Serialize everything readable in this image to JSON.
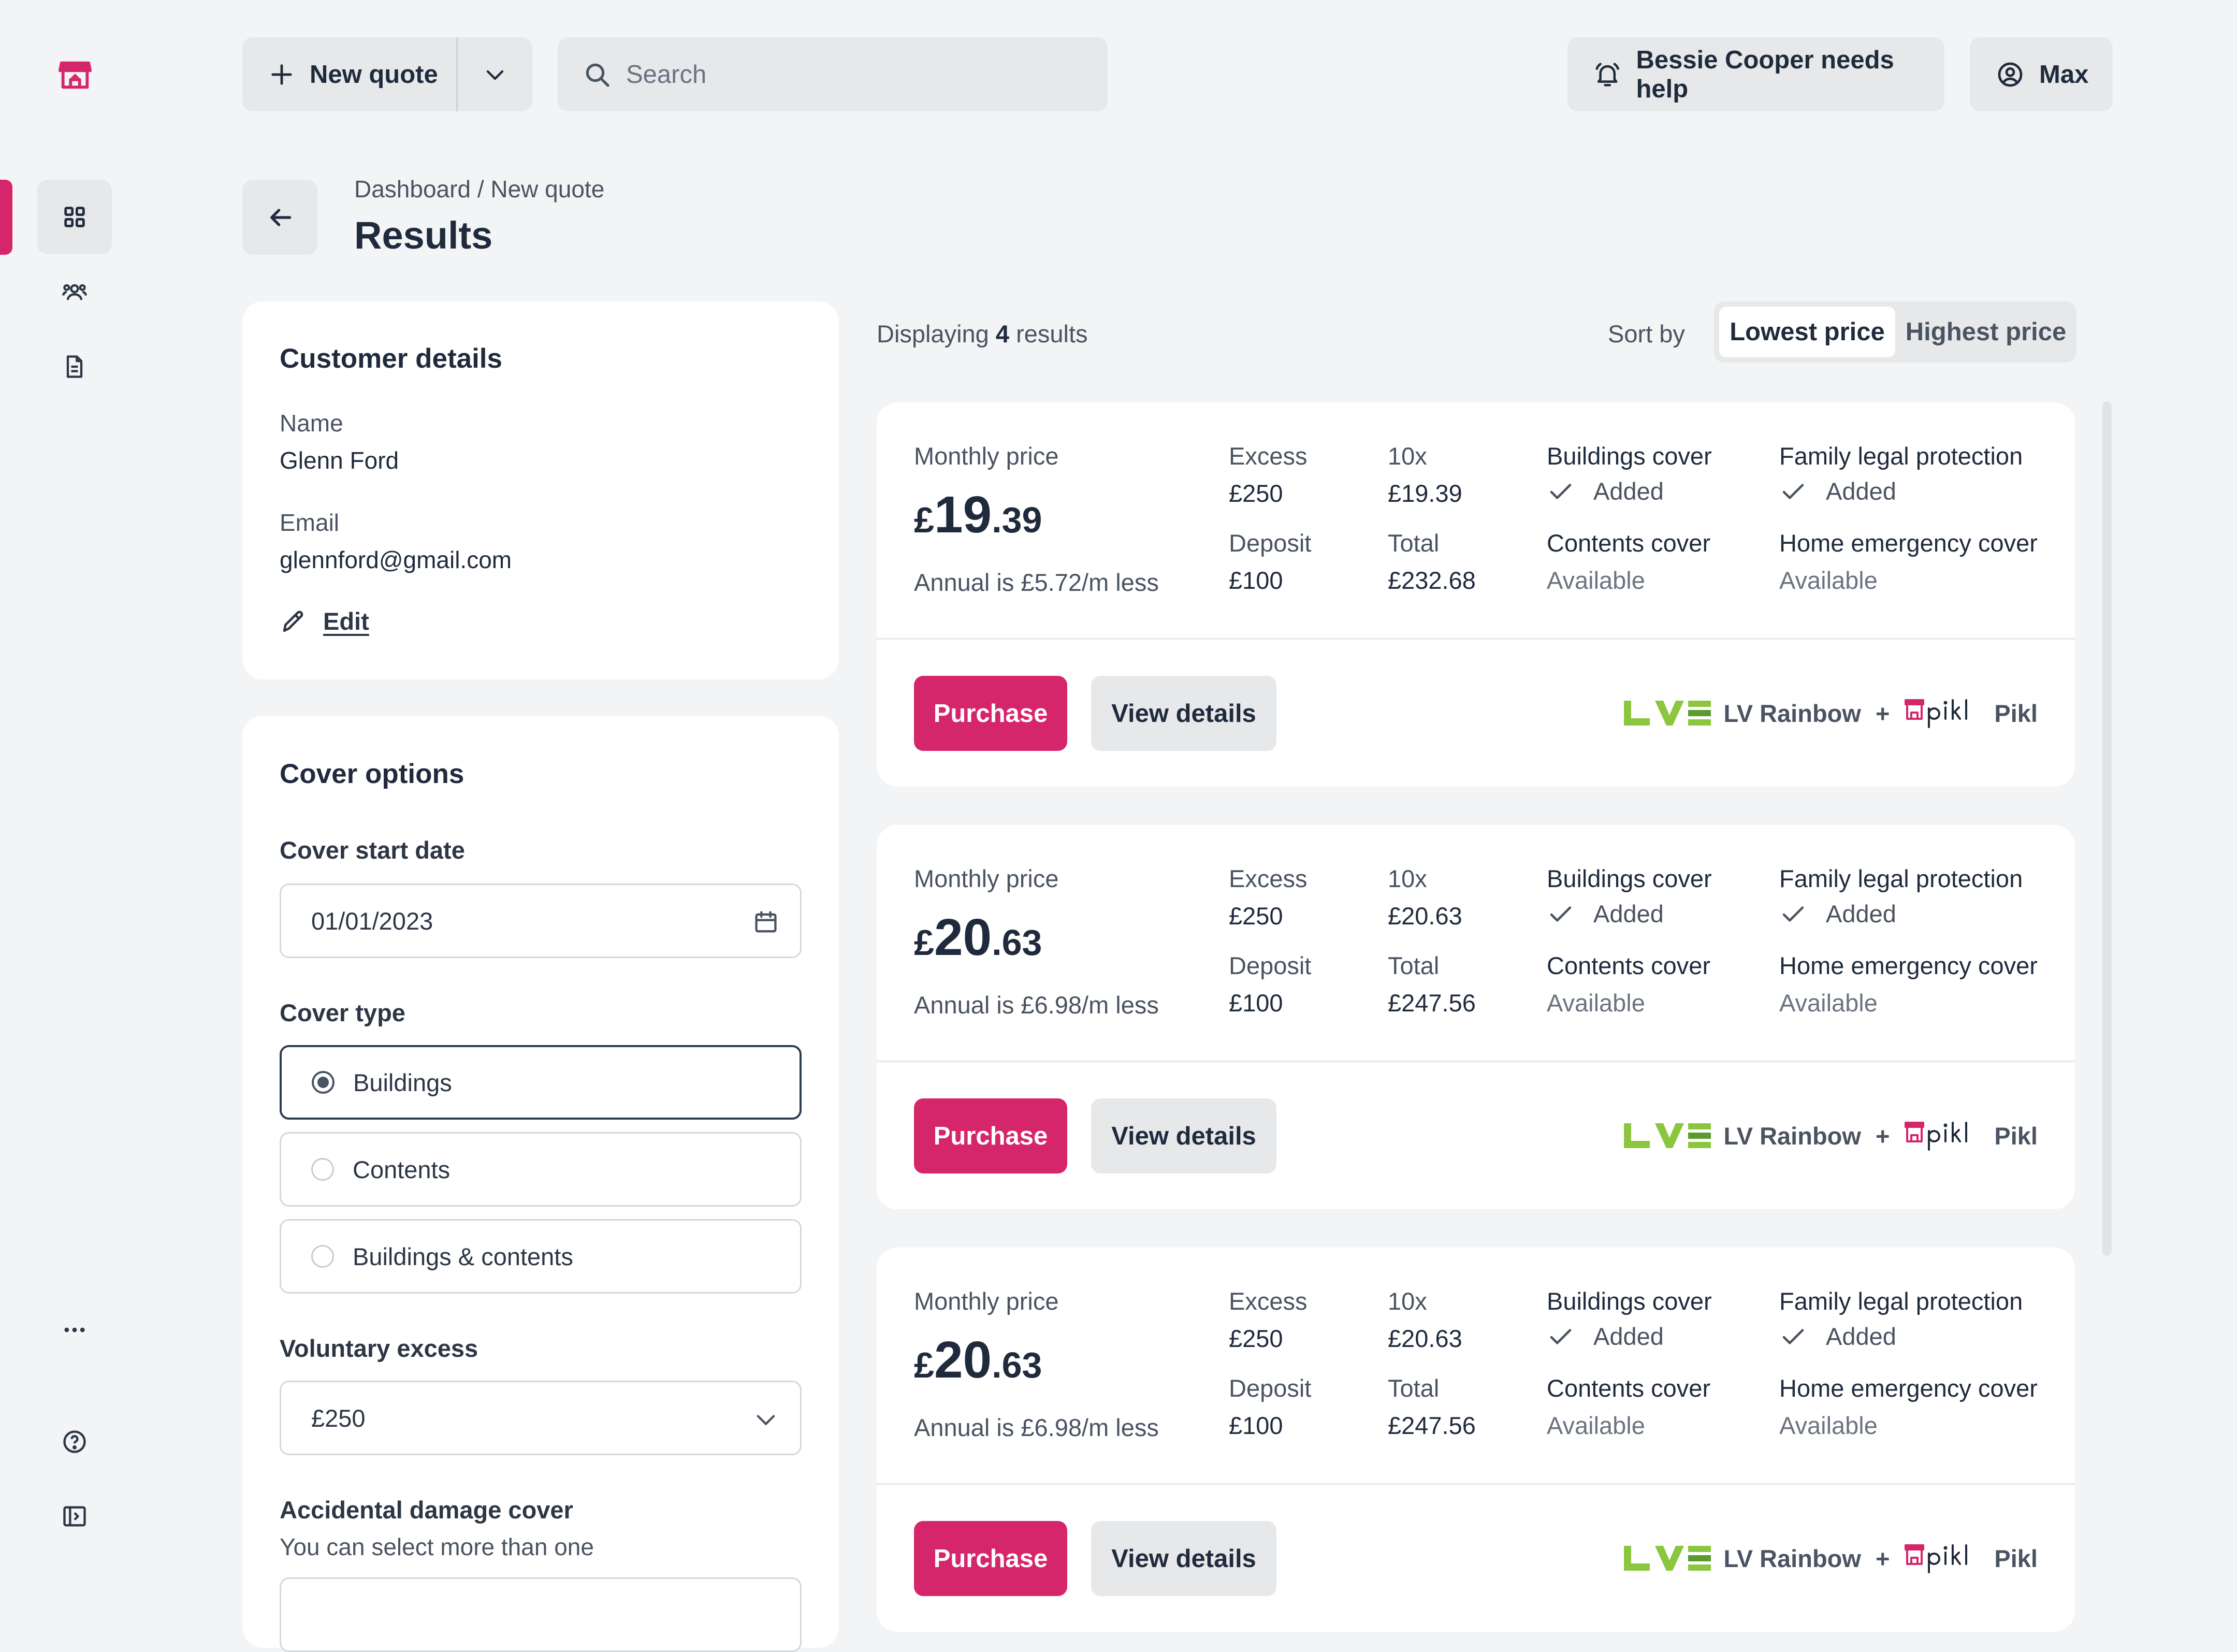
{
  "topbar": {
    "new_quote": "New quote",
    "search_placeholder": "Search",
    "help": "Bessie Cooper needs help",
    "user": "Max"
  },
  "header": {
    "breadcrumb": "Dashboard / New quote",
    "title": "Results"
  },
  "customer": {
    "title": "Customer details",
    "name_label": "Name",
    "name": "Glenn Ford",
    "email_label": "Email",
    "email": "glennford@gmail.com",
    "edit": "Edit"
  },
  "cover": {
    "title": "Cover options",
    "start_label": "Cover start date",
    "start_value": "01/01/2023",
    "type_label": "Cover type",
    "types": [
      "Buildings",
      "Contents",
      "Buildings & contents"
    ],
    "selected_type": "Buildings",
    "excess_label": "Voluntary excess",
    "excess_value": "£250",
    "accidental_label": "Accidental damage cover",
    "accidental_hint": "You can select more than one"
  },
  "results": {
    "count_prefix": "Displaying",
    "count": "4",
    "count_suffix": "results",
    "sort_label": "Sort by",
    "sort_options": [
      "Lowest price",
      "Highest price"
    ],
    "sort_selected": "Lowest price",
    "items": [
      {
        "monthly_label": "Monthly price",
        "currency": "£",
        "price_int": "19",
        "price_dec": ".39",
        "annual_note": "Annual is £5.72/m less",
        "excess_label": "Excess",
        "excess": "£250",
        "deposit_label": "Deposit",
        "deposit": "£100",
        "times_label": "10x",
        "times_value": "£19.39",
        "total_label": "Total",
        "total": "£232.68",
        "buildings_label": "Buildings cover",
        "buildings_status": "Added",
        "contents_label": "Contents cover",
        "contents_status": "Available",
        "legal_label": "Family legal protection",
        "legal_status": "Added",
        "emergency_label": "Home emergency cover",
        "emergency_status": "Available",
        "purchase": "Purchase",
        "details": "View details",
        "insurer": "LV Rainbow",
        "plus": "+",
        "partner": "Pikl"
      },
      {
        "monthly_label": "Monthly price",
        "currency": "£",
        "price_int": "20",
        "price_dec": ".63",
        "annual_note": "Annual is £6.98/m less",
        "excess_label": "Excess",
        "excess": "£250",
        "deposit_label": "Deposit",
        "deposit": "£100",
        "times_label": "10x",
        "times_value": "£20.63",
        "total_label": "Total",
        "total": "£247.56",
        "buildings_label": "Buildings cover",
        "buildings_status": "Added",
        "contents_label": "Contents cover",
        "contents_status": "Available",
        "legal_label": "Family legal protection",
        "legal_status": "Added",
        "emergency_label": "Home emergency cover",
        "emergency_status": "Available",
        "purchase": "Purchase",
        "details": "View details",
        "insurer": "LV Rainbow",
        "plus": "+",
        "partner": "Pikl"
      },
      {
        "monthly_label": "Monthly price",
        "currency": "£",
        "price_int": "20",
        "price_dec": ".63",
        "annual_note": "Annual is £6.98/m less",
        "excess_label": "Excess",
        "excess": "£250",
        "deposit_label": "Deposit",
        "deposit": "£100",
        "times_label": "10x",
        "times_value": "£20.63",
        "total_label": "Total",
        "total": "£247.56",
        "buildings_label": "Buildings cover",
        "buildings_status": "Added",
        "contents_label": "Contents cover",
        "contents_status": "Available",
        "legal_label": "Family legal protection",
        "legal_status": "Added",
        "emergency_label": "Home emergency cover",
        "emergency_status": "Available",
        "purchase": "Purchase",
        "details": "View details",
        "insurer": "LV Rainbow",
        "plus": "+",
        "partner": "Pikl"
      }
    ]
  },
  "colors": {
    "accent": "#D6266B",
    "background": "#F3F4F5",
    "text": "#1F2A3C",
    "lv_green": "#8CC63F"
  },
  "icons": {
    "logo": "shop-logo-icon",
    "nav": [
      "dashboard-grid-icon",
      "customers-icon",
      "document-icon"
    ],
    "bottom": [
      "more-icon",
      "help-icon",
      "collapse-sidebar-icon"
    ]
  }
}
